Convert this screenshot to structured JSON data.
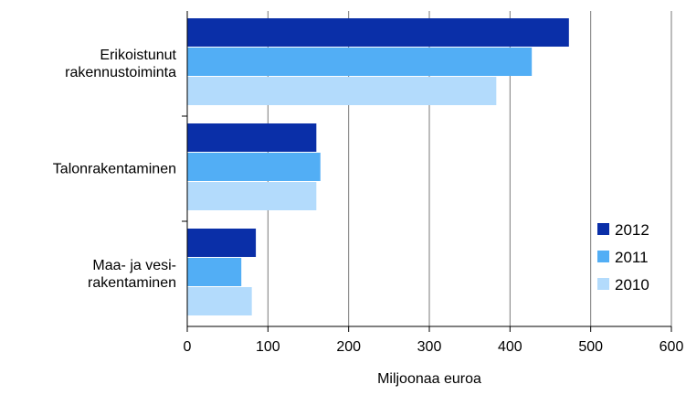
{
  "chart_data": {
    "type": "bar",
    "orientation": "horizontal",
    "categories": [
      [
        "Erikoistunut",
        "rakennustoiminta"
      ],
      [
        "Talonrakentaminen"
      ],
      [
        "Maa- ja vesi-",
        "rakentaminen"
      ]
    ],
    "series": [
      {
        "name": "2012",
        "color": "#0a2fa8",
        "values": [
          473,
          160,
          85
        ]
      },
      {
        "name": "2011",
        "color": "#52aef5",
        "values": [
          427,
          165,
          67
        ]
      },
      {
        "name": "2010",
        "color": "#b3dbfc",
        "values": [
          383,
          160,
          80
        ]
      }
    ],
    "xlabel": "Miljoonaa euroa",
    "xlim": [
      0,
      600
    ],
    "xticks": [
      "0",
      "100",
      "200",
      "300",
      "400",
      "500",
      "600"
    ],
    "grid": true,
    "legend": "bottom-right"
  }
}
